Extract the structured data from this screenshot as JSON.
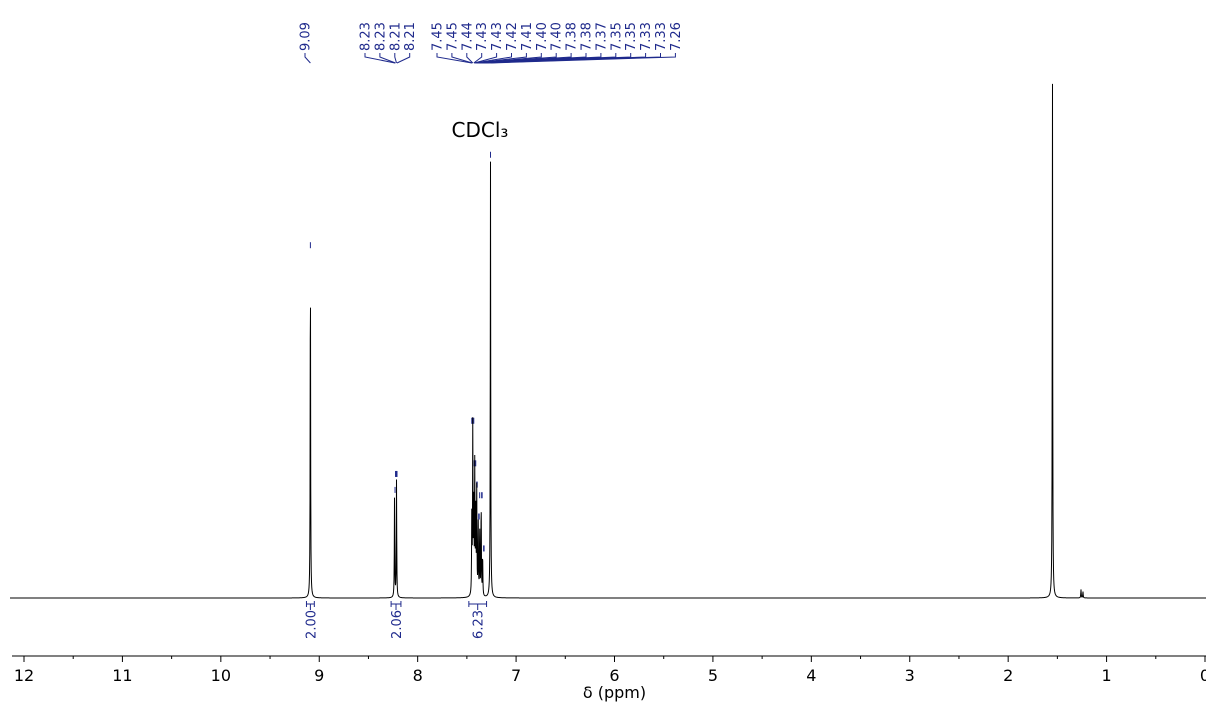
{
  "chart_data": {
    "type": "line",
    "title": "",
    "xlabel": "δ (ppm)",
    "ylabel": "",
    "xlim": [
      12.15,
      0
    ],
    "x_reversed": true,
    "x_ticks": [
      12,
      11,
      10,
      9,
      8,
      7,
      6,
      5,
      4,
      3,
      2,
      1,
      0
    ],
    "x_tick_labels": [
      "12",
      "11",
      "10",
      "9",
      "8",
      "7",
      "6",
      "5",
      "4",
      "3",
      "2",
      "1",
      "0"
    ],
    "grid": false,
    "annotation": {
      "text": "CDCl₃",
      "x": 7.26
    },
    "peak_list": [
      {
        "label": "9.09",
        "ppm": 9.09
      },
      {
        "label": "8.23",
        "ppm": 8.23
      },
      {
        "label": "8.23",
        "ppm": 8.225
      },
      {
        "label": "8.21",
        "ppm": 8.215
      },
      {
        "label": "8.21",
        "ppm": 8.21
      },
      {
        "label": "7.45",
        "ppm": 7.45
      },
      {
        "label": "7.45",
        "ppm": 7.445
      },
      {
        "label": "7.44",
        "ppm": 7.44
      },
      {
        "label": "7.43",
        "ppm": 7.43
      },
      {
        "label": "7.43",
        "ppm": 7.425
      },
      {
        "label": "7.42",
        "ppm": 7.42
      },
      {
        "label": "7.41",
        "ppm": 7.41
      },
      {
        "label": "7.40",
        "ppm": 7.4
      },
      {
        "label": "7.40",
        "ppm": 7.395
      },
      {
        "label": "7.38",
        "ppm": 7.38
      },
      {
        "label": "7.38",
        "ppm": 7.375
      },
      {
        "label": "7.37",
        "ppm": 7.37
      },
      {
        "label": "7.35",
        "ppm": 7.35
      },
      {
        "label": "7.35",
        "ppm": 7.345
      },
      {
        "label": "7.33",
        "ppm": 7.33
      },
      {
        "label": "7.33",
        "ppm": 7.325
      },
      {
        "label": "7.26",
        "ppm": 7.26
      }
    ],
    "integrals": [
      {
        "label": "2.00",
        "from": 9.13,
        "to": 9.05
      },
      {
        "label": "2.06",
        "from": 8.27,
        "to": 8.17
      },
      {
        "label": "6.23",
        "from": 7.48,
        "to": 7.3
      }
    ],
    "peaks": [
      {
        "ppm": 9.09,
        "height": 0.65
      },
      {
        "ppm": 8.235,
        "height": 0.19
      },
      {
        "ppm": 8.215,
        "height": 0.22
      },
      {
        "ppm": 7.45,
        "height": 0.15
      },
      {
        "ppm": 7.44,
        "height": 0.32
      },
      {
        "ppm": 7.43,
        "height": 0.16
      },
      {
        "ppm": 7.42,
        "height": 0.24
      },
      {
        "ppm": 7.41,
        "height": 0.15
      },
      {
        "ppm": 7.4,
        "height": 0.2
      },
      {
        "ppm": 7.385,
        "height": 0.14
      },
      {
        "ppm": 7.37,
        "height": 0.13
      },
      {
        "ppm": 7.355,
        "height": 0.18
      },
      {
        "ppm": 7.34,
        "height": 0.08
      },
      {
        "ppm": 7.26,
        "height": 0.82
      },
      {
        "ppm": 1.55,
        "height": 1.0
      },
      {
        "ppm": 1.26,
        "height": 0.016
      },
      {
        "ppm": 1.24,
        "height": 0.012
      }
    ],
    "colors": {
      "spectrum": "#000000",
      "annotation": "#1f2a8c"
    }
  }
}
